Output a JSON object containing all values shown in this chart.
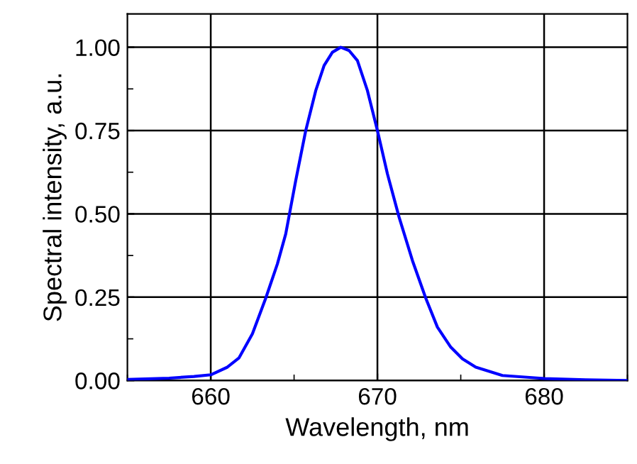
{
  "chart_data": {
    "type": "line",
    "xlabel": "Wavelength, nm",
    "ylabel": "Spectral intensity, a.u.",
    "x": [
      655,
      657.5,
      659,
      660,
      661,
      661.7,
      662.5,
      663.3,
      664,
      664.5,
      665.1,
      665.7,
      666.3,
      666.8,
      667.3,
      667.8,
      668.3,
      668.8,
      669.4,
      670,
      670.6,
      671.3,
      672.1,
      672.9,
      673.6,
      674.4,
      675.1,
      675.9,
      677.5,
      680,
      682.5,
      685
    ],
    "series": [
      {
        "color": "#0000ff",
        "values": [
          0.003,
          0.007,
          0.012,
          0.017,
          0.04,
          0.068,
          0.14,
          0.247,
          0.35,
          0.44,
          0.6,
          0.75,
          0.87,
          0.945,
          0.985,
          1.0,
          0.99,
          0.96,
          0.87,
          0.75,
          0.62,
          0.49,
          0.36,
          0.247,
          0.16,
          0.1,
          0.065,
          0.04,
          0.015,
          0.006,
          0.002,
          0.0
        ]
      }
    ],
    "xlim": [
      655,
      685
    ],
    "xticks": [
      660,
      670,
      680
    ],
    "ylim": [
      0,
      1.1
    ],
    "yticks": [
      {
        "value": 0,
        "label": "0.00"
      },
      {
        "value": 0.25,
        "label": "0.25"
      },
      {
        "value": 0.5,
        "label": "0.50"
      },
      {
        "value": 0.75,
        "label": "0.75"
      },
      {
        "value": 1,
        "label": "1.00"
      }
    ],
    "grid": true,
    "marker": "none",
    "line_style": "solid",
    "legend": false
  }
}
